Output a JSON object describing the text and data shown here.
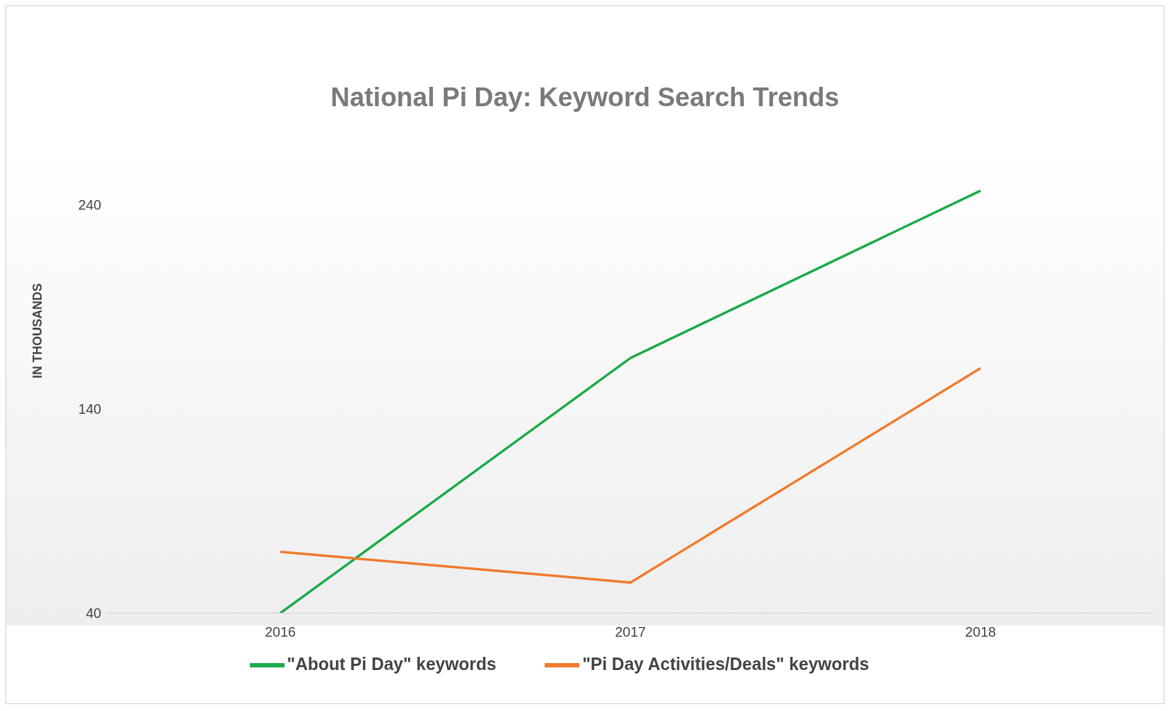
{
  "chart_data": {
    "type": "line",
    "title": "National Pi Day: Keyword Search Trends",
    "ylabel": "IN THOUSANDS",
    "categories": [
      "2016",
      "2017",
      "2018"
    ],
    "series": [
      {
        "name": "\"About Pi Day\" keywords",
        "color": "#1aaa48",
        "values": [
          40,
          165,
          247
        ]
      },
      {
        "name": "\"Pi Day Activities/Deals\" keywords",
        "color": "#f07a2a",
        "values": [
          70,
          55,
          160
        ]
      }
    ],
    "ylim": [
      40,
      270
    ],
    "yticks": [
      40,
      140,
      240
    ],
    "legend": "bottom",
    "marker": "none"
  }
}
